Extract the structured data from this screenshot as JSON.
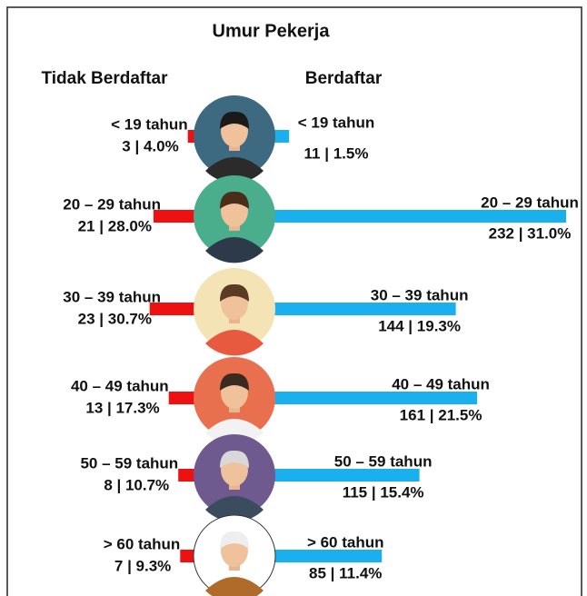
{
  "chart_data": {
    "type": "butterfly",
    "title": "Umur Pekerja",
    "categories": [
      "< 19 tahun",
      "20 – 29 tahun",
      "30 – 39 tahun",
      "40 – 49 tahun",
      "50 – 59 tahun",
      "> 60 tahun"
    ],
    "series": [
      {
        "name": "Tidak Berdaftar",
        "color": "#ee1111",
        "values": [
          3,
          21,
          23,
          13,
          8,
          7
        ],
        "value_labels": [
          "3 | 4.0%",
          "21 | 28.0%",
          "23 | 30.7%",
          "13 | 17.3%",
          "8 | 10.7%",
          "7 | 9.3%"
        ]
      },
      {
        "name": "Berdaftar",
        "color": "#1ab0ee",
        "values": [
          11,
          232,
          144,
          161,
          115,
          85
        ],
        "value_labels": [
          "11 | 1.5%",
          "232 | 31.0%",
          "144 | 19.3%",
          "161 | 21.5%",
          "115 | 15.4%",
          "85 | 11.4%"
        ]
      }
    ]
  }
}
